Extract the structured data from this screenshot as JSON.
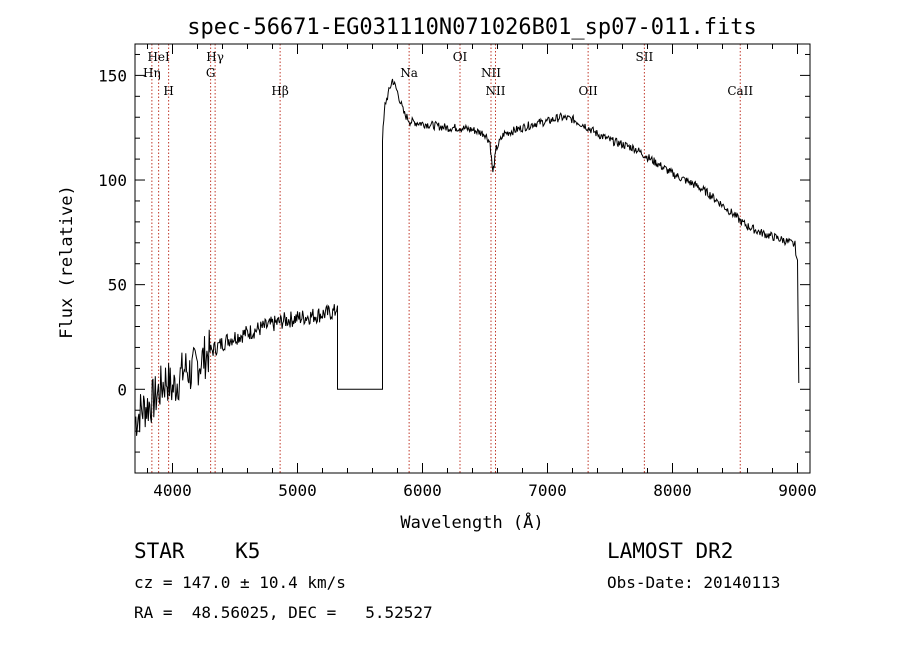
{
  "chart_data": {
    "type": "line",
    "title": "spec-56671-EG031110N071026B01_sp07-011.fits",
    "xlabel": "Wavelength (Å)",
    "ylabel": "Flux (relative)",
    "xlim": [
      3700,
      9100
    ],
    "ylim": [
      -40,
      165
    ],
    "xticks": [
      4000,
      5000,
      6000,
      7000,
      8000,
      9000
    ],
    "yticks": [
      0,
      50,
      100,
      150
    ],
    "xtick_labels": [
      "4000",
      "5000",
      "6000",
      "7000",
      "8000",
      "9000"
    ],
    "ytick_labels": [
      "0",
      "50",
      "100",
      "150"
    ],
    "series": [
      {
        "name": "flux",
        "x": [
          3700,
          3750,
          3800,
          3850,
          3900,
          3950,
          4000,
          4050,
          4100,
          4150,
          4200,
          4250,
          4300,
          4350,
          4400,
          4450,
          4500,
          4600,
          4700,
          4800,
          4900,
          5000,
          5100,
          5200,
          5300,
          5320,
          5320,
          5680,
          5680,
          5690,
          5700,
          5720,
          5760,
          5800,
          5850,
          5900,
          6000,
          6100,
          6200,
          6300,
          6400,
          6500,
          6540,
          6563,
          6590,
          6650,
          6700,
          6800,
          6900,
          7000,
          7100,
          7200,
          7300,
          7400,
          7500,
          7600,
          7700,
          7800,
          7900,
          8000,
          8100,
          8200,
          8300,
          8400,
          8500,
          8550,
          8600,
          8700,
          8800,
          8900,
          8980,
          9000,
          9010
        ],
        "y": [
          -15,
          -10,
          -8,
          -5,
          0,
          5,
          0,
          5,
          10,
          8,
          12,
          15,
          18,
          20,
          22,
          24,
          25,
          27,
          29,
          31,
          33,
          34,
          35,
          36,
          37,
          40,
          0,
          0,
          120,
          128,
          136,
          140,
          148,
          142,
          132,
          128,
          127,
          126,
          125,
          125,
          124,
          122,
          118,
          103,
          115,
          122,
          123,
          125,
          127,
          128,
          130,
          129,
          126,
          122,
          119,
          117,
          115,
          111,
          107,
          103,
          100,
          97,
          93,
          88,
          83,
          80,
          78,
          75,
          73,
          71,
          69,
          60,
          3
        ]
      }
    ],
    "lines": [
      {
        "label": "HeI",
        "wave": 3889,
        "row": 0
      },
      {
        "label": "Hη",
        "wave": 3835,
        "row": 1
      },
      {
        "label": "H",
        "wave": 3969,
        "row": 2
      },
      {
        "label": "Hγ",
        "wave": 4341,
        "row": 0
      },
      {
        "label": "G",
        "wave": 4305,
        "row": 1
      },
      {
        "label": "Hβ",
        "wave": 4861,
        "row": 2
      },
      {
        "label": "Na",
        "wave": 5893,
        "row": 1
      },
      {
        "label": "OI",
        "wave": 6300,
        "row": 0
      },
      {
        "label": "NII",
        "wave": 6548,
        "row": 1
      },
      {
        "label": "NII",
        "wave": 6584,
        "row": 2
      },
      {
        "label": "OII",
        "wave": 7325,
        "row": 2
      },
      {
        "label": "SII",
        "wave": 7775,
        "row": 0
      },
      {
        "label": "CaII",
        "wave": 8542,
        "row": 2
      }
    ],
    "line_color": "#c0392b"
  },
  "info": {
    "class": "STAR    K5",
    "survey": "LAMOST DR2",
    "cz": "cz = 147.0 ± 10.4 km/s",
    "obs_date": "Obs-Date: 20140113",
    "radec": "RA =  48.56025, DEC =   5.52527"
  }
}
